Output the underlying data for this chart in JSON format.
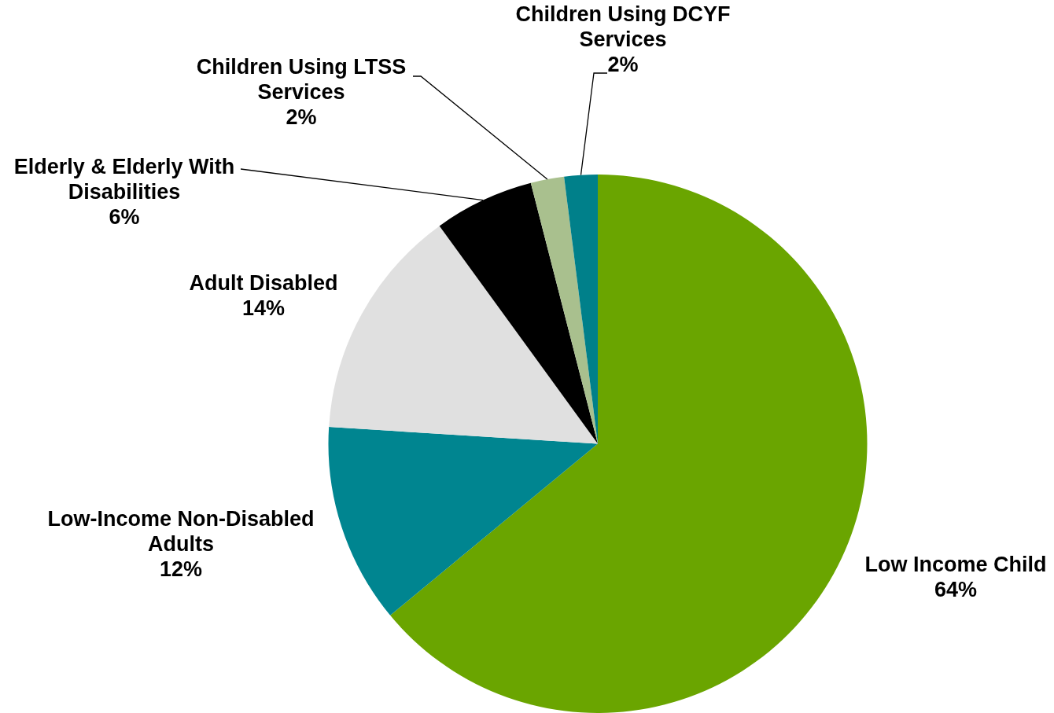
{
  "chart_data": {
    "type": "pie",
    "categories": [
      "Low Income Child",
      "Low-Income Non-Disabled Adults",
      "Adult Disabled",
      "Elderly & Elderly With Disabilities",
      "Children Using LTSS Services",
      "Children Using DCYF Services"
    ],
    "values": [
      64,
      12,
      14,
      6,
      2,
      2
    ],
    "colors": [
      "#6aa500",
      "#008590",
      "#e0e0e0",
      "#000000",
      "#a9c08e",
      "#00808a"
    ],
    "value_labels": [
      "64%",
      "12%",
      "14%",
      "6%",
      "2%",
      "2%"
    ],
    "legend": false
  }
}
